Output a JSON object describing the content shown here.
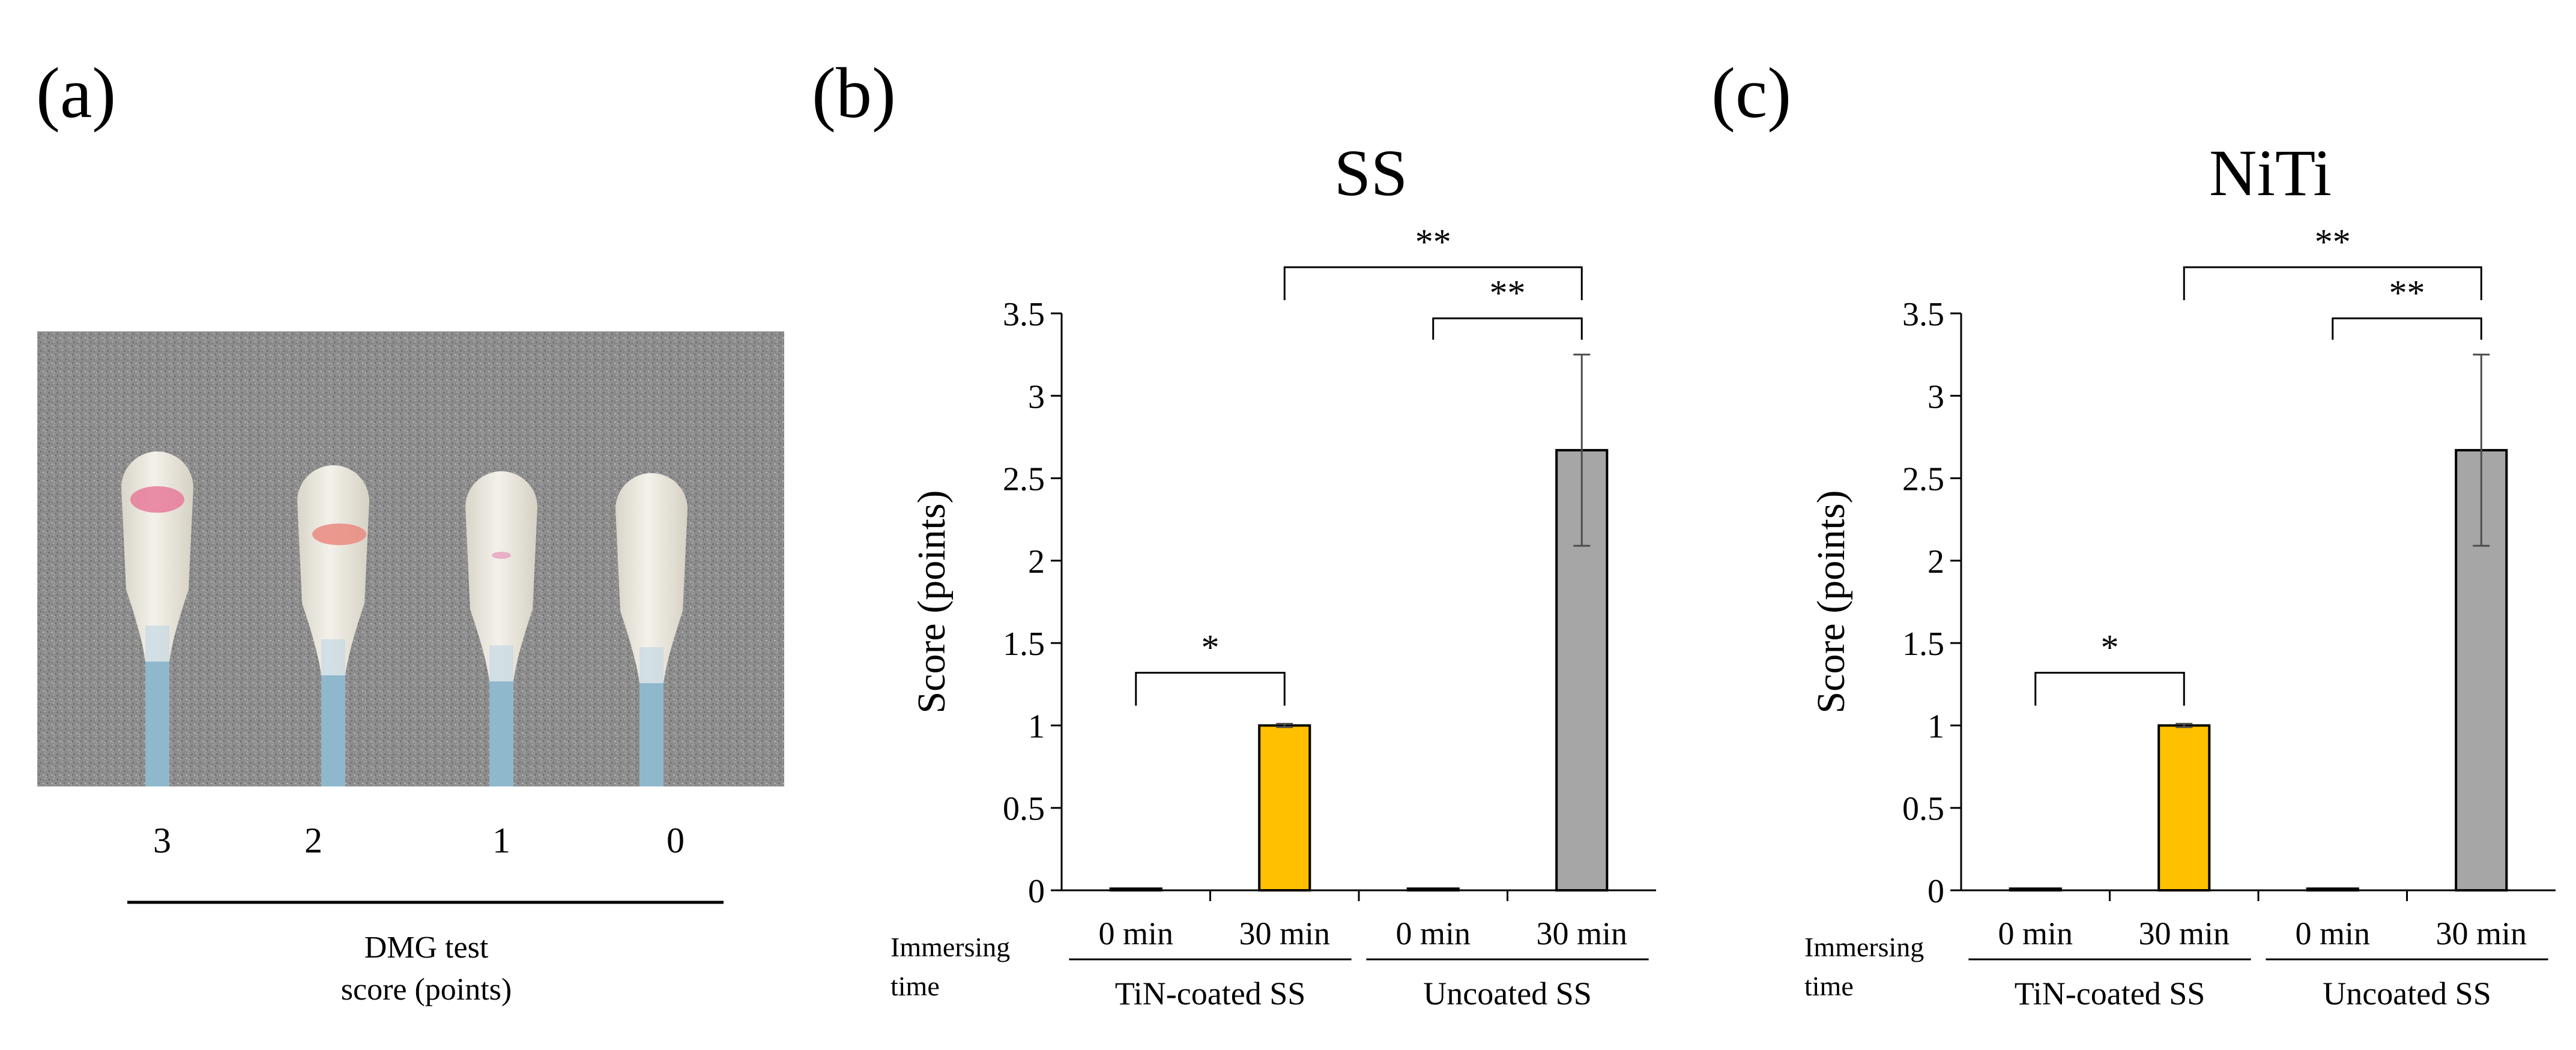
{
  "panels": {
    "a": {
      "label": "(a)",
      "photo": {
        "description_icon": "cotton-swab-photo",
        "background_color": "#8f8f8f",
        "swab_color": "#ece9df",
        "stick_color": "#8fb8cc",
        "stain_colors": [
          "#e77a9a",
          "#ea8a80",
          "#e6a6c2"
        ]
      },
      "score_labels": [
        "3",
        "2",
        "1",
        "0"
      ],
      "caption_line1": "DMG test",
      "caption_line2": "score (points)"
    },
    "b": {
      "label": "(b)"
    },
    "c": {
      "label": "(c)"
    }
  },
  "shared": {
    "immersing_label_line1": "Immersing",
    "immersing_label_line2": "time",
    "group_labels": [
      "TiN-coated SS",
      "Uncoated SS"
    ]
  },
  "colors": {
    "tin_30": "#ffc000",
    "uncoated_30": "#a6a6a6",
    "axis": "#000000",
    "error_bar": "#4d4d4d"
  },
  "chart_data": [
    {
      "type": "bar",
      "title": "SS",
      "ylabel": "Score (points)",
      "xlabel": "",
      "ylim": [
        0,
        3.5
      ],
      "yticks": [
        0,
        0.5,
        1,
        1.5,
        2,
        2.5,
        3,
        3.5
      ],
      "ytick_labels": [
        "0",
        "0.5",
        "1",
        "1.5",
        "2",
        "2.5",
        "3",
        "3.5"
      ],
      "grid": false,
      "categories": [
        "0 min",
        "30 min",
        "0 min",
        "30 min"
      ],
      "groups": [
        "TiN-coated SS",
        "TiN-coated SS",
        "Uncoated SS",
        "Uncoated SS"
      ],
      "values": [
        0.01,
        1.0,
        0.01,
        2.67
      ],
      "errors": [
        0,
        0.01,
        0,
        0.58
      ],
      "bar_colors": [
        "#ffffff",
        "#ffc000",
        "#ffffff",
        "#a6a6a6"
      ],
      "significance": [
        {
          "from": 0,
          "to": 1,
          "label": "*"
        },
        {
          "from": 2,
          "to": 3,
          "label": "**"
        },
        {
          "from": 1,
          "to": 3,
          "label": "**"
        }
      ]
    },
    {
      "type": "bar",
      "title": "NiTi",
      "ylabel": "Score (points)",
      "xlabel": "",
      "ylim": [
        0,
        3.5
      ],
      "yticks": [
        0,
        0.5,
        1,
        1.5,
        2,
        2.5,
        3,
        3.5
      ],
      "ytick_labels": [
        "0",
        "0.5",
        "1",
        "1.5",
        "2",
        "2.5",
        "3",
        "3.5"
      ],
      "grid": false,
      "categories": [
        "0 min",
        "30 min",
        "0 min",
        "30 min"
      ],
      "groups": [
        "TiN-coated SS",
        "TiN-coated SS",
        "Uncoated SS",
        "Uncoated SS"
      ],
      "values": [
        0.01,
        1.0,
        0.01,
        2.67
      ],
      "errors": [
        0,
        0.01,
        0,
        0.58
      ],
      "bar_colors": [
        "#ffffff",
        "#ffc000",
        "#ffffff",
        "#a6a6a6"
      ],
      "significance": [
        {
          "from": 0,
          "to": 1,
          "label": "*"
        },
        {
          "from": 2,
          "to": 3,
          "label": "**"
        },
        {
          "from": 1,
          "to": 3,
          "label": "**"
        }
      ]
    }
  ]
}
